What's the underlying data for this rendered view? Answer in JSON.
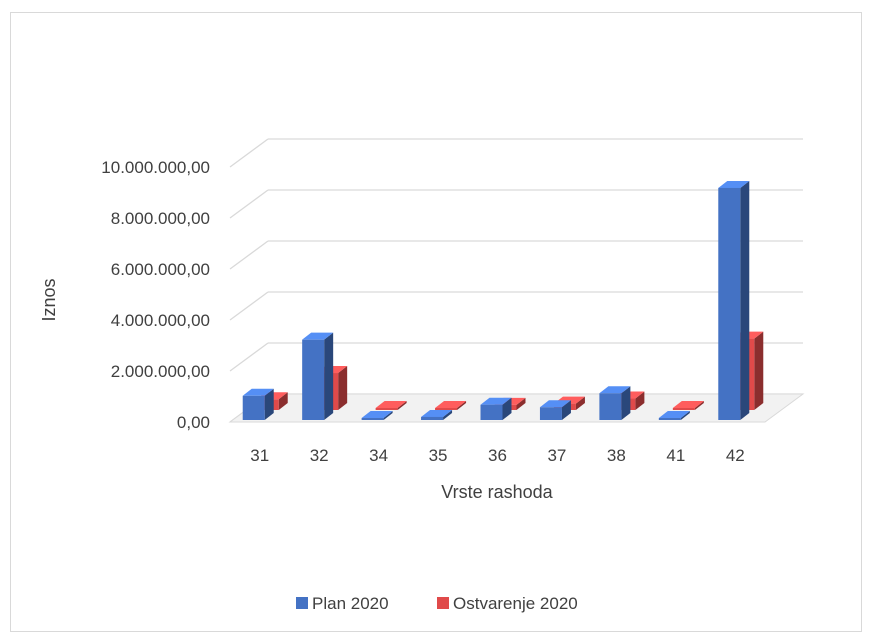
{
  "chart_data": {
    "type": "bar",
    "variant": "3d-clustered-column",
    "categories": [
      "31",
      "32",
      "34",
      "35",
      "36",
      "37",
      "38",
      "41",
      "42"
    ],
    "series": [
      {
        "name": "Plan 2020",
        "color": "#4472c4",
        "values": [
          950000,
          3150000,
          30000,
          120000,
          600000,
          500000,
          1050000,
          60000,
          9100000
        ]
      },
      {
        "name": "Ostvarenje 2020",
        "color": "#e04a4a",
        "values": [
          420000,
          1450000,
          20000,
          10000,
          200000,
          250000,
          450000,
          5000,
          2800000
        ]
      }
    ],
    "xlabel": "Vrste rashoda",
    "ylabel": "Iznos",
    "ylim": [
      0,
      10000000
    ],
    "yticks": [
      "0,00",
      "2.000.000,00",
      "4.000.000,00",
      "6.000.000,00",
      "8.000.000,00",
      "10.000.000,00"
    ],
    "grid": true,
    "legend_position": "bottom"
  }
}
